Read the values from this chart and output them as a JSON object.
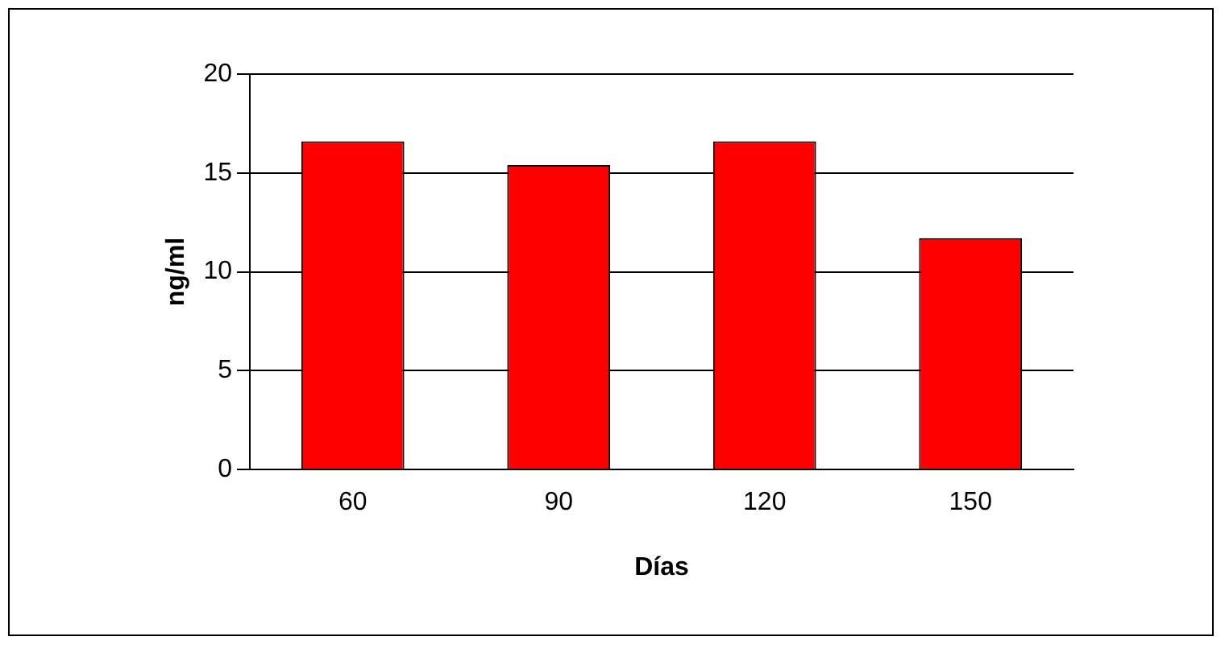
{
  "chart_data": {
    "type": "bar",
    "xlabel": "Días",
    "ylabel": "ng/ml",
    "categories": [
      "60",
      "90",
      "120",
      "150"
    ],
    "values": [
      16.6,
      15.4,
      16.6,
      11.7
    ],
    "color": "#ff0000",
    "ylim": [
      0,
      20
    ],
    "yticks": [
      0,
      5,
      10,
      15,
      20
    ],
    "grid": "y",
    "legend": false
  }
}
